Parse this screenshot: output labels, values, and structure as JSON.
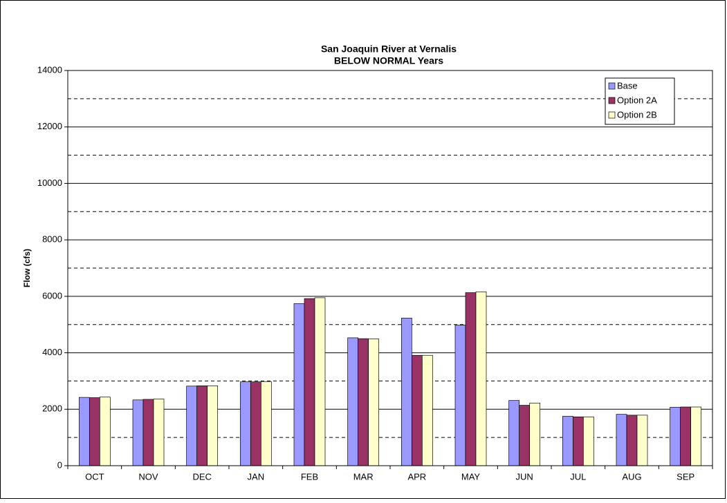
{
  "chart_data": {
    "type": "bar",
    "title": [
      "San Joaquin River at Vernalis",
      "BELOW NORMAL Years"
    ],
    "ylabel": "Flow (cfs)",
    "categories": [
      "OCT",
      "NOV",
      "DEC",
      "JAN",
      "FEB",
      "MAR",
      "APR",
      "MAY",
      "JUN",
      "JUL",
      "AUG",
      "SEP"
    ],
    "series": [
      {
        "name": "Base",
        "color": "#9999ff",
        "values": [
          2420,
          2330,
          2820,
          2970,
          5740,
          4530,
          5230,
          4980,
          2310,
          1750,
          1820,
          2070
        ]
      },
      {
        "name": "Option 2A",
        "color": "#993366",
        "values": [
          2410,
          2350,
          2830,
          2970,
          5920,
          4500,
          3910,
          6130,
          2140,
          1730,
          1790,
          2080
        ]
      },
      {
        "name": "Option 2B",
        "color": "#ffffcc",
        "values": [
          2430,
          2360,
          2830,
          2980,
          5950,
          4490,
          3910,
          6160,
          2220,
          1730,
          1790,
          2080
        ]
      }
    ],
    "ylim": [
      0,
      14000
    ],
    "yticks": [
      0,
      2000,
      4000,
      6000,
      8000,
      10000,
      12000,
      14000
    ],
    "minor_yticks": [
      1000,
      3000,
      5000,
      7000,
      9000,
      11000,
      13000
    ],
    "grid": true,
    "legend": "top-right"
  }
}
